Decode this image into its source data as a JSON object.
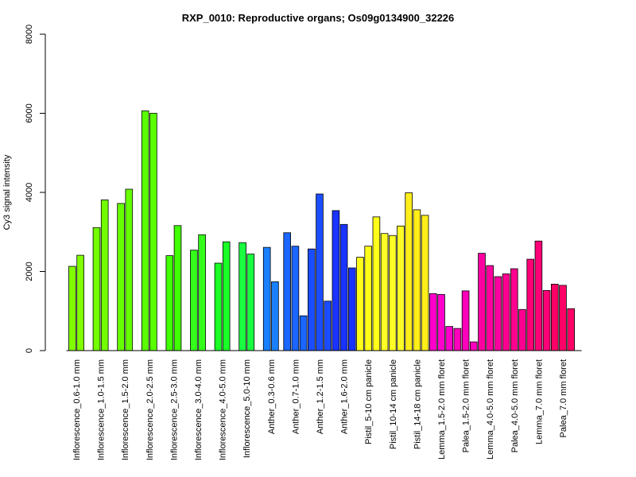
{
  "chart_data": {
    "type": "bar",
    "title": "RXP_0010: Reproductive organs; Os09g0134900_32226",
    "xlabel": "",
    "ylabel": "Cy3 signal intensity",
    "ylim": [
      0,
      8000
    ],
    "yticks": [
      0,
      2000,
      4000,
      6000,
      8000
    ],
    "grid": false,
    "legend": "none",
    "groups": [
      {
        "label": "Inflorescence_0.6-1.0 mm",
        "values": [
          2130,
          2410
        ],
        "color": "#80ff00"
      },
      {
        "label": "Inflorescence_1.0-1.5 mm",
        "values": [
          3110,
          3810
        ],
        "color": "#73ff00"
      },
      {
        "label": "Inflorescence_1.5-2.0 mm",
        "values": [
          3720,
          4080
        ],
        "color": "#66ff00"
      },
      {
        "label": "Inflorescence_2.0-2.5 mm",
        "values": [
          6060,
          6000
        ],
        "color": "#59ff00"
      },
      {
        "label": "Inflorescence_2.5-3.0 mm",
        "values": [
          2400,
          3160
        ],
        "color": "#40ff00"
      },
      {
        "label": "Inflorescence_3.0-4.0 mm",
        "values": [
          2540,
          2930
        ],
        "color": "#33ff1a"
      },
      {
        "label": "Inflorescence_4.0-5.0 mm",
        "values": [
          2210,
          2750
        ],
        "color": "#1aff26"
      },
      {
        "label": "Inflorescence_5.0-10 mm",
        "values": [
          2730,
          2440
        ],
        "color": "#1aff40"
      },
      {
        "label": "Anther_0.3-0.6 mm",
        "values": [
          2610,
          1740
        ],
        "color": "#1a80ff"
      },
      {
        "label": "Anther_0.7-1.0 mm",
        "values": [
          2980,
          2640,
          880
        ],
        "color": "#1a66ff"
      },
      {
        "label": "Anther_1.2-1.5 mm",
        "values": [
          2570,
          3960,
          1250
        ],
        "color": "#1a4dff"
      },
      {
        "label": "Anther_1.6-2.0 mm",
        "values": [
          3540,
          3190,
          2090
        ],
        "color": "#1a33ff"
      },
      {
        "label": "Pistil_5-10 cm panicle",
        "values": [
          2360,
          2640,
          3380
        ],
        "color": "#ffff1a"
      },
      {
        "label": "Pistil_10-14 cm panicle",
        "values": [
          2960,
          2910,
          3150
        ],
        "color": "#ffff26"
      },
      {
        "label": "Pistil_14-18 cm panicle",
        "values": [
          3990,
          3560,
          3420
        ],
        "color": "#ffee1a"
      },
      {
        "label": "Lemma_1.5-2.0 mm floret",
        "values": [
          1440,
          1420,
          610
        ],
        "color": "#ff00cc"
      },
      {
        "label": "Palea_1.5-2.0 mm floret",
        "values": [
          560,
          1510,
          220
        ],
        "color": "#ff00bb"
      },
      {
        "label": "Lemma_4.0-5.0 mm floret",
        "values": [
          2460,
          2150,
          1870
        ],
        "color": "#ff00a0"
      },
      {
        "label": "Palea_4.0-5.0 mm floret",
        "values": [
          1940,
          2070,
          1040
        ],
        "color": "#ff0090"
      },
      {
        "label": "Lemma_7.0 mm floret",
        "values": [
          2310,
          2770,
          1520
        ],
        "color": "#ff0077"
      },
      {
        "label": "Palea_7.0 mm floret",
        "values": [
          1680,
          1650,
          1060
        ],
        "color": "#ff0066"
      }
    ]
  }
}
